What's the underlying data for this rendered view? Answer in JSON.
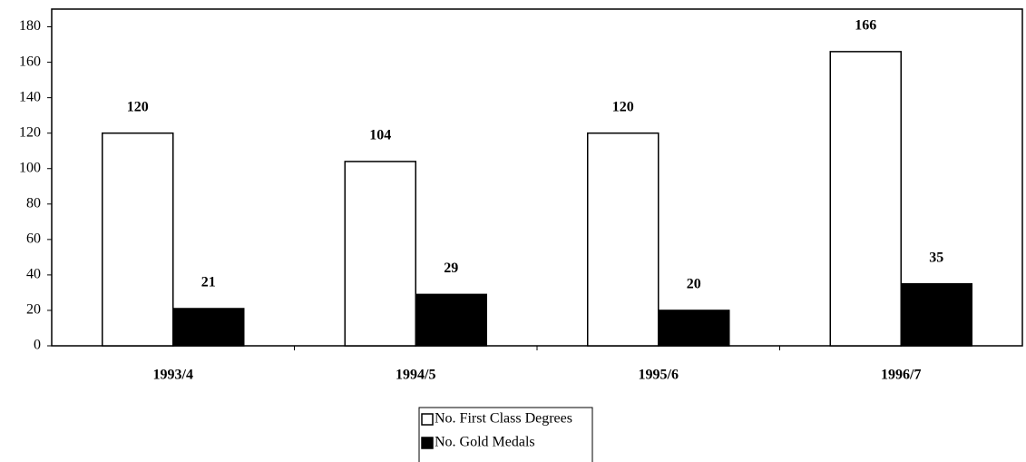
{
  "chart_data": {
    "type": "bar",
    "categories": [
      "1993/4",
      "1994/5",
      "1995/6",
      "1996/7"
    ],
    "series": [
      {
        "name": "No. First Class Degrees",
        "color": "#ffffff",
        "values": [
          120,
          104,
          120,
          166
        ]
      },
      {
        "name": "No. Gold Medals",
        "color": "#000000",
        "values": [
          21,
          29,
          20,
          35
        ]
      }
    ],
    "ylim": [
      0,
      190
    ],
    "yticks": [
      0,
      20,
      40,
      60,
      80,
      100,
      120,
      140,
      160,
      180
    ],
    "grid": false,
    "legend": "bottom"
  }
}
